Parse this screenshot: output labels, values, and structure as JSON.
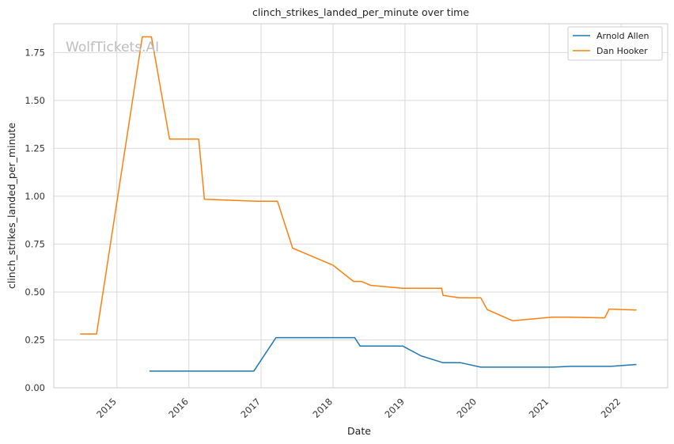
{
  "chart_data": {
    "type": "line",
    "title": "clinch_strikes_landed_per_minute over time",
    "xlabel": "Date",
    "ylabel": "clinch_strikes_landed_per_minute",
    "watermark": "WolfTickets.AI",
    "x_ticks": [
      "2015",
      "2016",
      "2017",
      "2018",
      "2019",
      "2020",
      "2021",
      "2022"
    ],
    "y_ticks": [
      "0.00",
      "0.25",
      "0.50",
      "0.75",
      "1.00",
      "1.25",
      "1.50",
      "1.75"
    ],
    "ylim": [
      0,
      1.9
    ],
    "xlim": [
      "2014-02-15",
      "2022-08-25"
    ],
    "grid": true,
    "legend_position": "top-right",
    "series": [
      {
        "name": "Arnold Allen",
        "color": "#1f77b4",
        "points": [
          [
            "2015-06-15",
            0.087
          ],
          [
            "2016-11-25",
            0.087
          ],
          [
            "2017-03-18",
            0.262
          ],
          [
            "2018-04-21",
            0.262
          ],
          [
            "2018-05-18",
            0.218
          ],
          [
            "2018-12-20",
            0.218
          ],
          [
            "2019-03-23",
            0.167
          ],
          [
            "2019-07-13",
            0.131
          ],
          [
            "2019-10-10",
            0.131
          ],
          [
            "2020-01-20",
            0.108
          ],
          [
            "2021-01-20",
            0.108
          ],
          [
            "2021-04-20",
            0.112
          ],
          [
            "2021-11-10",
            0.112
          ],
          [
            "2022-03-20",
            0.122
          ]
        ]
      },
      {
        "name": "Dan Hooker",
        "color": "#ff7f0e",
        "points": [
          [
            "2014-06-28",
            0.281
          ],
          [
            "2014-09-20",
            0.281
          ],
          [
            "2015-05-10",
            1.832
          ],
          [
            "2015-06-25",
            1.832
          ],
          [
            "2015-09-25",
            1.298
          ],
          [
            "2016-02-20",
            1.298
          ],
          [
            "2016-03-20",
            0.984
          ],
          [
            "2016-12-10",
            0.974
          ],
          [
            "2017-03-25",
            0.974
          ],
          [
            "2017-06-10",
            0.729
          ],
          [
            "2018-01-01",
            0.64
          ],
          [
            "2018-04-15",
            0.555
          ],
          [
            "2018-05-25",
            0.555
          ],
          [
            "2018-07-10",
            0.535
          ],
          [
            "2018-12-20",
            0.519
          ],
          [
            "2019-07-06",
            0.519
          ],
          [
            "2019-07-13",
            0.482
          ],
          [
            "2019-10-05",
            0.47
          ],
          [
            "2020-01-20",
            0.47
          ],
          [
            "2020-02-22",
            0.408
          ],
          [
            "2020-06-30",
            0.35
          ],
          [
            "2021-01-16",
            0.369
          ],
          [
            "2021-04-10",
            0.369
          ],
          [
            "2021-10-10",
            0.365
          ],
          [
            "2021-11-01",
            0.411
          ],
          [
            "2022-03-20",
            0.406
          ]
        ]
      }
    ]
  }
}
